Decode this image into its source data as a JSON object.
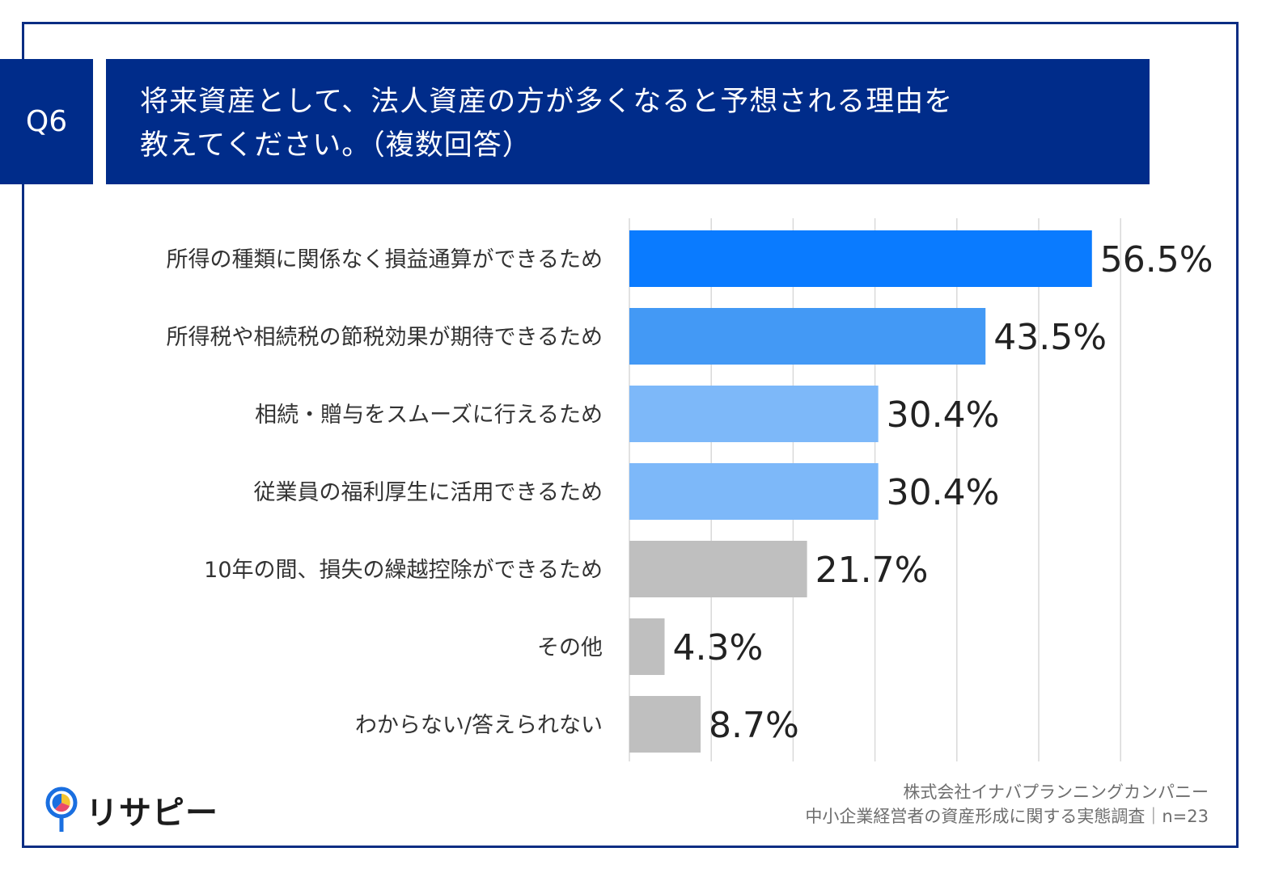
{
  "header": {
    "badge": "Q6",
    "title_line1": "将来資産として、法人資産の方が多くなると予想される理由を",
    "title_line2": "教えてください。（複数回答）"
  },
  "chart_data": {
    "type": "bar",
    "orientation": "horizontal",
    "categories": [
      "所得の種類に関係なく損益通算ができるため",
      "所得税や相続税の節税効果が期待できるため",
      "相続・贈与をスムーズに行えるため",
      "従業員の福利厚生に活用できるため",
      "10年の間、損失の繰越控除ができるため",
      "その他",
      "わからない/答えられない"
    ],
    "values": [
      56.5,
      43.5,
      30.4,
      30.4,
      21.7,
      4.3,
      8.7
    ],
    "value_labels": [
      "56.5%",
      "43.5%",
      "30.4%",
      "30.4%",
      "21.7%",
      "4.3%",
      "8.7%"
    ],
    "colors": [
      "#0a7bff",
      "#4399f5",
      "#7db8f9",
      "#7db8f9",
      "#bfbfbf",
      "#bfbfbf",
      "#bfbfbf"
    ],
    "xlim": [
      0,
      60
    ],
    "grid": true,
    "grid_step": 10
  },
  "footer": {
    "company": "株式会社イナバプランニングカンパニー",
    "survey": "中小企業経営者の資産形成に関する実態調査｜n=23"
  },
  "logo": {
    "text": "リサピー"
  }
}
